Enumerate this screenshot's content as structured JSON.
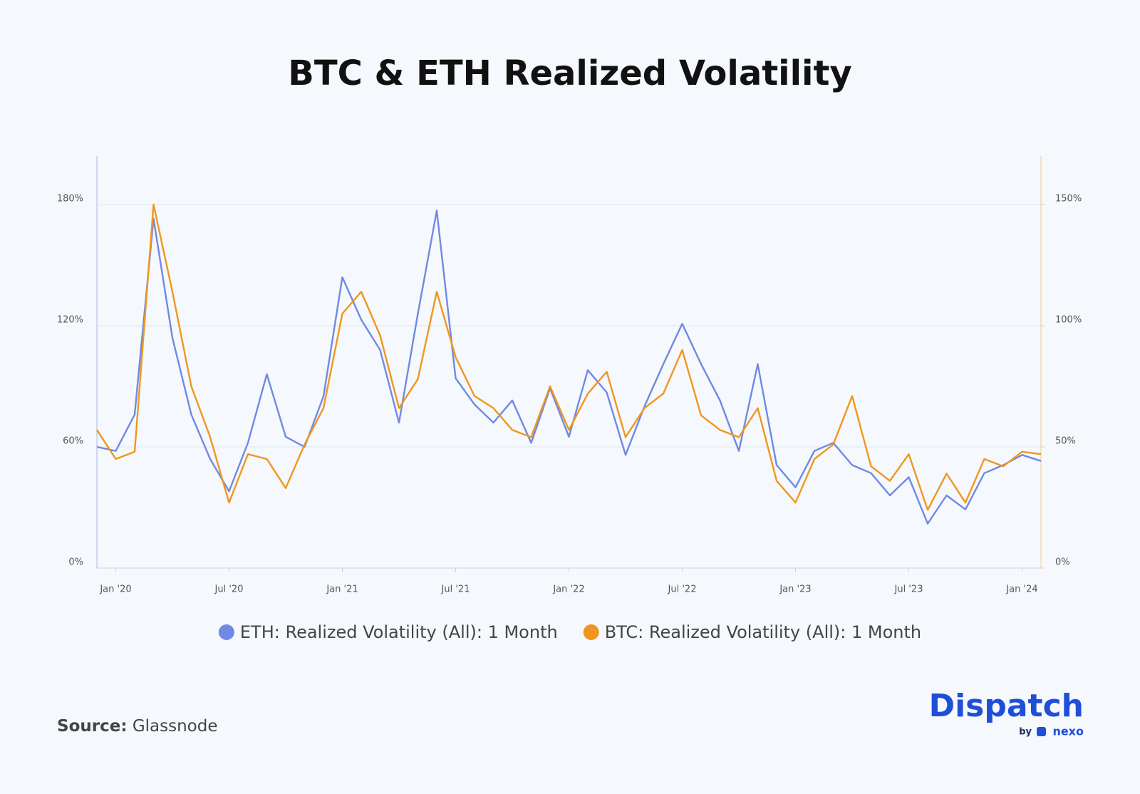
{
  "chart_data": {
    "type": "line",
    "title": "BTC & ETH Realized Volatility",
    "x": [
      "2019-12",
      "2020-01",
      "2020-02",
      "2020-03",
      "2020-04",
      "2020-05",
      "2020-06",
      "2020-07",
      "2020-08",
      "2020-09",
      "2020-10",
      "2020-11",
      "2020-12",
      "2021-01",
      "2021-02",
      "2021-03",
      "2021-04",
      "2021-05",
      "2021-06",
      "2021-07",
      "2021-08",
      "2021-09",
      "2021-10",
      "2021-11",
      "2021-12",
      "2022-01",
      "2022-02",
      "2022-03",
      "2022-04",
      "2022-05",
      "2022-06",
      "2022-07",
      "2022-08",
      "2022-09",
      "2022-10",
      "2022-11",
      "2022-12",
      "2023-01",
      "2023-02",
      "2023-03",
      "2023-04",
      "2023-05",
      "2023-06",
      "2023-07",
      "2023-08",
      "2023-09",
      "2023-10",
      "2023-11",
      "2023-12",
      "2024-01",
      "2024-02"
    ],
    "series": [
      {
        "name": "ETH: Realized Volatility (All): 1 Month",
        "color": "#7089e3",
        "axis": "y",
        "values": [
          60,
          58,
          76,
          173,
          114,
          76,
          54,
          38,
          62,
          96,
          65,
          60,
          85,
          144,
          123,
          108,
          72,
          126,
          177,
          94,
          81,
          72,
          83,
          62,
          89,
          65,
          98,
          87,
          56,
          80,
          101,
          121,
          101,
          83,
          58,
          101,
          51,
          40,
          58,
          62,
          51,
          47,
          36,
          45,
          22,
          36,
          29,
          47,
          51,
          56,
          53
        ]
      },
      {
        "name": "BTC: Realized Volatility (All): 1 Month",
        "color": "#f0961e",
        "axis": "y2",
        "values": [
          57,
          45,
          48,
          150,
          114,
          75,
          54,
          27,
          47,
          45,
          33,
          51,
          66,
          105,
          114,
          96,
          66,
          78,
          114,
          87,
          71,
          66,
          57,
          54,
          75,
          57,
          72,
          81,
          54,
          66,
          72,
          90,
          63,
          57,
          54,
          66,
          36,
          27,
          45,
          51,
          71,
          42,
          36,
          47,
          24,
          39,
          27,
          45,
          42,
          48,
          47
        ]
      }
    ],
    "xlim": [
      "2019-12",
      "2024-02"
    ],
    "xticks": [
      {
        "value": "2020-01",
        "label": "Jan '20"
      },
      {
        "value": "2020-07",
        "label": "Jul '20"
      },
      {
        "value": "2021-01",
        "label": "Jan '21"
      },
      {
        "value": "2021-07",
        "label": "Jul '21"
      },
      {
        "value": "2022-01",
        "label": "Jan '22"
      },
      {
        "value": "2022-07",
        "label": "Jul '22"
      },
      {
        "value": "2023-01",
        "label": "Jan '23"
      },
      {
        "value": "2023-07",
        "label": "Jul '23"
      },
      {
        "value": "2024-01",
        "label": "Jan '24"
      }
    ],
    "ylim": [
      0,
      204
    ],
    "yticks": [
      {
        "value": 0,
        "label": "0%"
      },
      {
        "value": 60,
        "label": "60%"
      },
      {
        "value": 120,
        "label": "120%"
      },
      {
        "value": 180,
        "label": "180%"
      }
    ],
    "y2lim": [
      0,
      170
    ],
    "y2ticks": [
      {
        "value": 0,
        "label": "0%"
      },
      {
        "value": 50,
        "label": "50%"
      },
      {
        "value": 100,
        "label": "100%"
      },
      {
        "value": 150,
        "label": "150%"
      }
    ],
    "grid": true,
    "legend_position": "bottom",
    "source": {
      "label": "Source:",
      "value": "Glassnode"
    }
  },
  "branding": {
    "name": "Dispatch",
    "by": "by",
    "partner": "nexo"
  }
}
